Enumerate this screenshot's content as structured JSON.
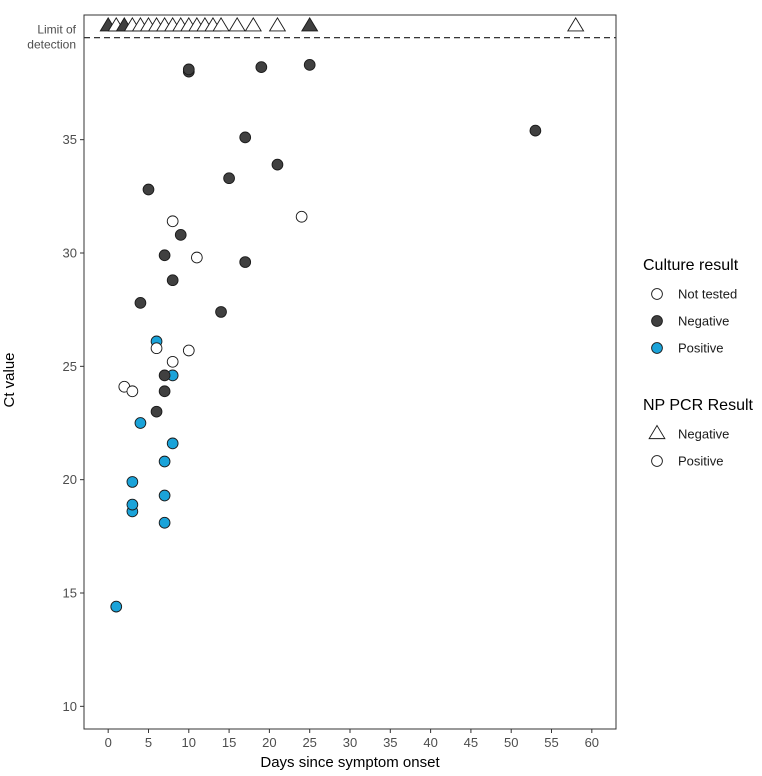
{
  "chart_data": {
    "type": "scatter",
    "xlabel": "Days since symptom onset",
    "ylabel": "Ct value",
    "xlim": [
      -3,
      63
    ],
    "ylim": [
      9,
      40.5
    ],
    "x_ticks": [
      0,
      5,
      10,
      15,
      20,
      25,
      30,
      35,
      40,
      45,
      50,
      55,
      60
    ],
    "y_ticks": [
      10,
      15,
      20,
      25,
      30,
      35
    ],
    "limit_of_detection": {
      "value": 39.5,
      "label_line1": "Limit of",
      "label_line2": "detection"
    },
    "legend": {
      "placement": "right",
      "culture": {
        "title": "Culture result",
        "entries": [
          {
            "label": "Not tested",
            "color": "#ffffff"
          },
          {
            "label": "Negative",
            "color": "#404040"
          },
          {
            "label": "Positive",
            "color": "#1aa3d9"
          }
        ]
      },
      "pcr": {
        "title": "NP PCR Result",
        "entries": [
          {
            "label": "Negative",
            "shape": "triangle"
          },
          {
            "label": "Positive",
            "shape": "circle"
          }
        ]
      }
    },
    "colors": {
      "not_tested": "#ffffff",
      "negative": "#404040",
      "positive": "#1aa3d9",
      "stroke": "#1a1a1a"
    },
    "points": [
      {
        "x": 1,
        "y": 14.4,
        "culture": "positive",
        "pcr": "positive"
      },
      {
        "x": 3,
        "y": 18.6,
        "culture": "positive",
        "pcr": "positive"
      },
      {
        "x": 3,
        "y": 18.9,
        "culture": "positive",
        "pcr": "positive"
      },
      {
        "x": 3,
        "y": 19.9,
        "culture": "positive",
        "pcr": "positive"
      },
      {
        "x": 4,
        "y": 22.5,
        "culture": "positive",
        "pcr": "positive"
      },
      {
        "x": 6,
        "y": 26.1,
        "culture": "positive",
        "pcr": "positive"
      },
      {
        "x": 7,
        "y": 18.1,
        "culture": "positive",
        "pcr": "positive"
      },
      {
        "x": 7,
        "y": 19.3,
        "culture": "positive",
        "pcr": "positive"
      },
      {
        "x": 7,
        "y": 20.8,
        "culture": "positive",
        "pcr": "positive"
      },
      {
        "x": 8,
        "y": 21.6,
        "culture": "positive",
        "pcr": "positive"
      },
      {
        "x": 8,
        "y": 24.6,
        "culture": "positive",
        "pcr": "positive"
      },
      {
        "x": 2,
        "y": 24.1,
        "culture": "not_tested",
        "pcr": "positive"
      },
      {
        "x": 3,
        "y": 23.9,
        "culture": "not_tested",
        "pcr": "positive"
      },
      {
        "x": 6,
        "y": 25.8,
        "culture": "not_tested",
        "pcr": "positive"
      },
      {
        "x": 8,
        "y": 25.2,
        "culture": "not_tested",
        "pcr": "positive"
      },
      {
        "x": 10,
        "y": 25.7,
        "culture": "not_tested",
        "pcr": "positive"
      },
      {
        "x": 8,
        "y": 31.4,
        "culture": "not_tested",
        "pcr": "positive"
      },
      {
        "x": 11,
        "y": 29.8,
        "culture": "not_tested",
        "pcr": "positive"
      },
      {
        "x": 24,
        "y": 31.6,
        "culture": "not_tested",
        "pcr": "positive"
      },
      {
        "x": 4,
        "y": 27.8,
        "culture": "negative",
        "pcr": "positive"
      },
      {
        "x": 5,
        "y": 32.8,
        "culture": "negative",
        "pcr": "positive"
      },
      {
        "x": 6,
        "y": 23.0,
        "culture": "negative",
        "pcr": "positive"
      },
      {
        "x": 7,
        "y": 23.9,
        "culture": "negative",
        "pcr": "positive"
      },
      {
        "x": 7,
        "y": 24.6,
        "culture": "negative",
        "pcr": "positive"
      },
      {
        "x": 7,
        "y": 29.9,
        "culture": "negative",
        "pcr": "positive"
      },
      {
        "x": 8,
        "y": 28.8,
        "culture": "negative",
        "pcr": "positive"
      },
      {
        "x": 9,
        "y": 30.8,
        "culture": "negative",
        "pcr": "positive"
      },
      {
        "x": 10,
        "y": 38.0,
        "culture": "negative",
        "pcr": "positive"
      },
      {
        "x": 10,
        "y": 38.1,
        "culture": "negative",
        "pcr": "positive"
      },
      {
        "x": 14,
        "y": 27.4,
        "culture": "negative",
        "pcr": "positive"
      },
      {
        "x": 15,
        "y": 33.3,
        "culture": "negative",
        "pcr": "positive"
      },
      {
        "x": 17,
        "y": 35.1,
        "culture": "negative",
        "pcr": "positive"
      },
      {
        "x": 17,
        "y": 29.6,
        "culture": "negative",
        "pcr": "positive"
      },
      {
        "x": 19,
        "y": 38.2,
        "culture": "negative",
        "pcr": "positive"
      },
      {
        "x": 21,
        "y": 33.9,
        "culture": "negative",
        "pcr": "positive"
      },
      {
        "x": 25,
        "y": 38.3,
        "culture": "negative",
        "pcr": "positive"
      },
      {
        "x": 53,
        "y": 35.4,
        "culture": "negative",
        "pcr": "positive"
      },
      {
        "x": 0,
        "y": 40.0,
        "culture": "negative",
        "pcr": "negative"
      },
      {
        "x": 1,
        "y": 40.0,
        "culture": "not_tested",
        "pcr": "negative"
      },
      {
        "x": 2,
        "y": 40.0,
        "culture": "negative",
        "pcr": "negative"
      },
      {
        "x": 3,
        "y": 40.0,
        "culture": "not_tested",
        "pcr": "negative"
      },
      {
        "x": 4,
        "y": 40.0,
        "culture": "not_tested",
        "pcr": "negative"
      },
      {
        "x": 5,
        "y": 40.0,
        "culture": "not_tested",
        "pcr": "negative"
      },
      {
        "x": 6,
        "y": 40.0,
        "culture": "not_tested",
        "pcr": "negative"
      },
      {
        "x": 7,
        "y": 40.0,
        "culture": "not_tested",
        "pcr": "negative"
      },
      {
        "x": 8,
        "y": 40.0,
        "culture": "not_tested",
        "pcr": "negative"
      },
      {
        "x": 9,
        "y": 40.0,
        "culture": "not_tested",
        "pcr": "negative"
      },
      {
        "x": 10,
        "y": 40.0,
        "culture": "not_tested",
        "pcr": "negative"
      },
      {
        "x": 11,
        "y": 40.0,
        "culture": "not_tested",
        "pcr": "negative"
      },
      {
        "x": 12,
        "y": 40.0,
        "culture": "not_tested",
        "pcr": "negative"
      },
      {
        "x": 13,
        "y": 40.0,
        "culture": "not_tested",
        "pcr": "negative"
      },
      {
        "x": 14,
        "y": 40.0,
        "culture": "not_tested",
        "pcr": "negative"
      },
      {
        "x": 16,
        "y": 40.0,
        "culture": "not_tested",
        "pcr": "negative"
      },
      {
        "x": 18,
        "y": 40.0,
        "culture": "not_tested",
        "pcr": "negative"
      },
      {
        "x": 21,
        "y": 40.0,
        "culture": "not_tested",
        "pcr": "negative"
      },
      {
        "x": 25,
        "y": 40.0,
        "culture": "negative",
        "pcr": "negative"
      },
      {
        "x": 58,
        "y": 40.0,
        "culture": "not_tested",
        "pcr": "negative"
      }
    ]
  }
}
